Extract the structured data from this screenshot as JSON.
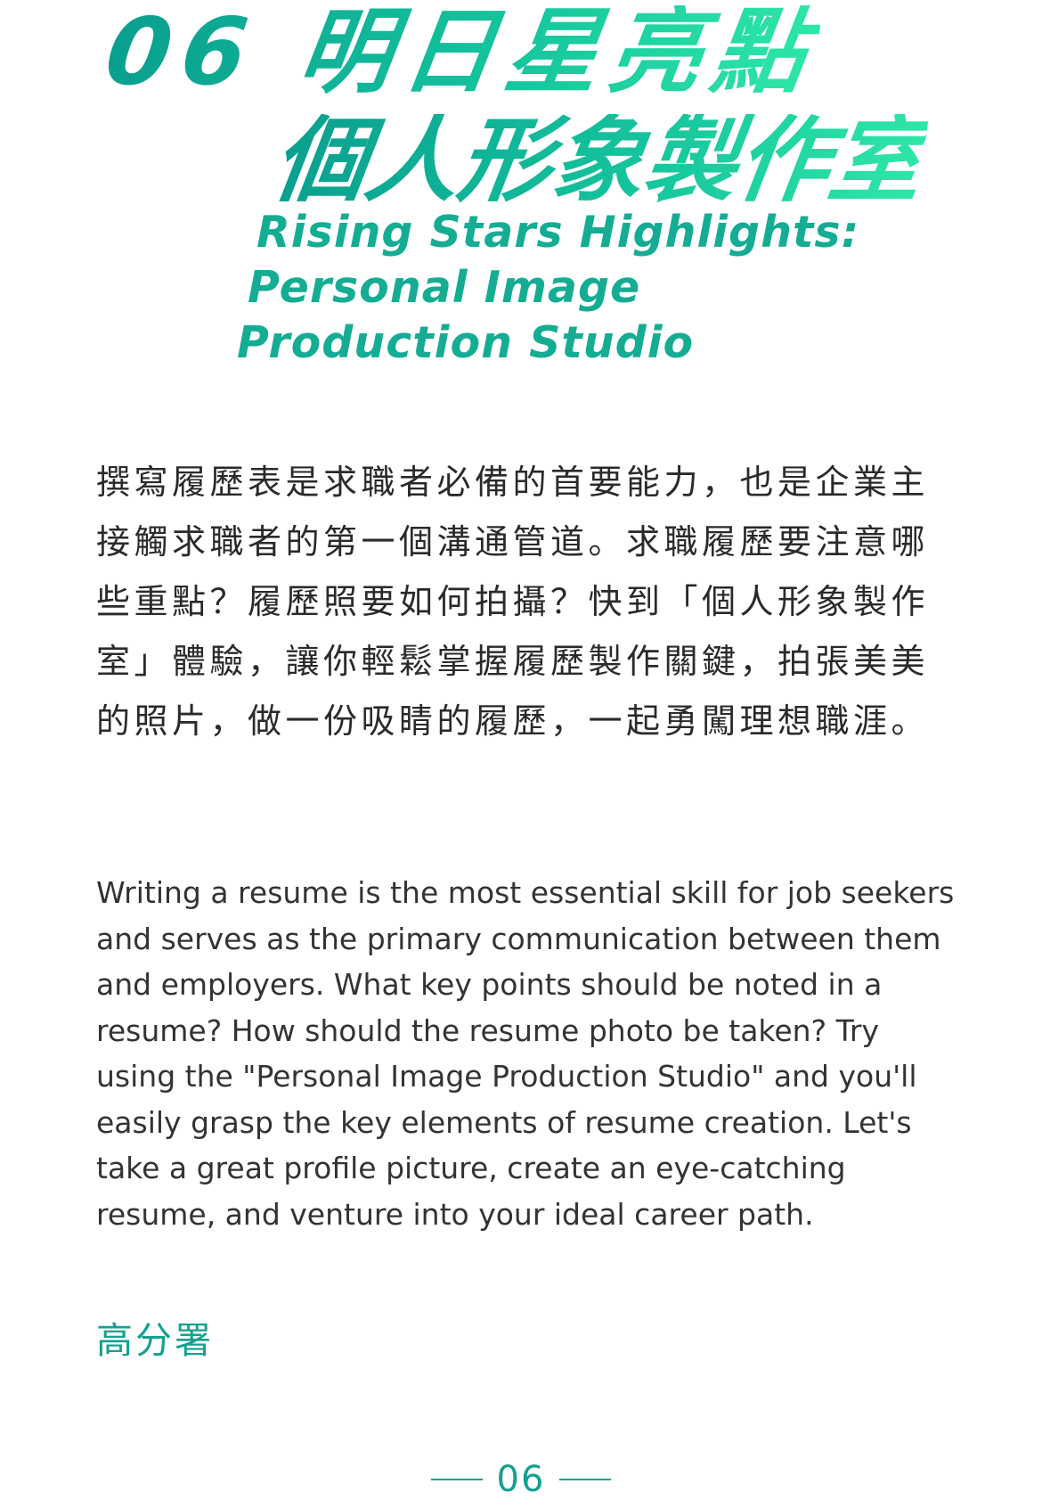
{
  "title": {
    "zh_line1": "06 明日星亮點",
    "zh_line2": "個人形象製作室",
    "en_line1": "Rising Stars Highlights:",
    "en_line2": "Personal Image",
    "en_line3": "Production Studio",
    "gradient_colors": [
      "#0a9f8f",
      "#14c39c",
      "#2ee6a8"
    ]
  },
  "body": {
    "zh": "撰寫履歷表是求職者必備的首要能力，也是企業主接觸求職者的第一個溝通管道。求職履歷要注意哪些重點？履歷照要如何拍攝？快到「個人形象製作室」體驗，讓你輕鬆掌握履歷製作關鍵，拍張美美的照片，做一份吸睛的履歷，一起勇闖理想職涯。",
    "en": "Writing a resume is the most essential skill for job seekers and serves as the primary communication between them and employers. What key points should be noted in a resume? How should the resume photo be taken? Try using the \"Personal Image Production Studio\" and you'll easily grasp the key elements of resume creation. Let's take a great profile picture, create an eye-catching resume, and venture into your ideal career path."
  },
  "author": "高分署",
  "page_number": "06",
  "colors": {
    "accent": "#14a090",
    "text": "#2a2a2a"
  }
}
